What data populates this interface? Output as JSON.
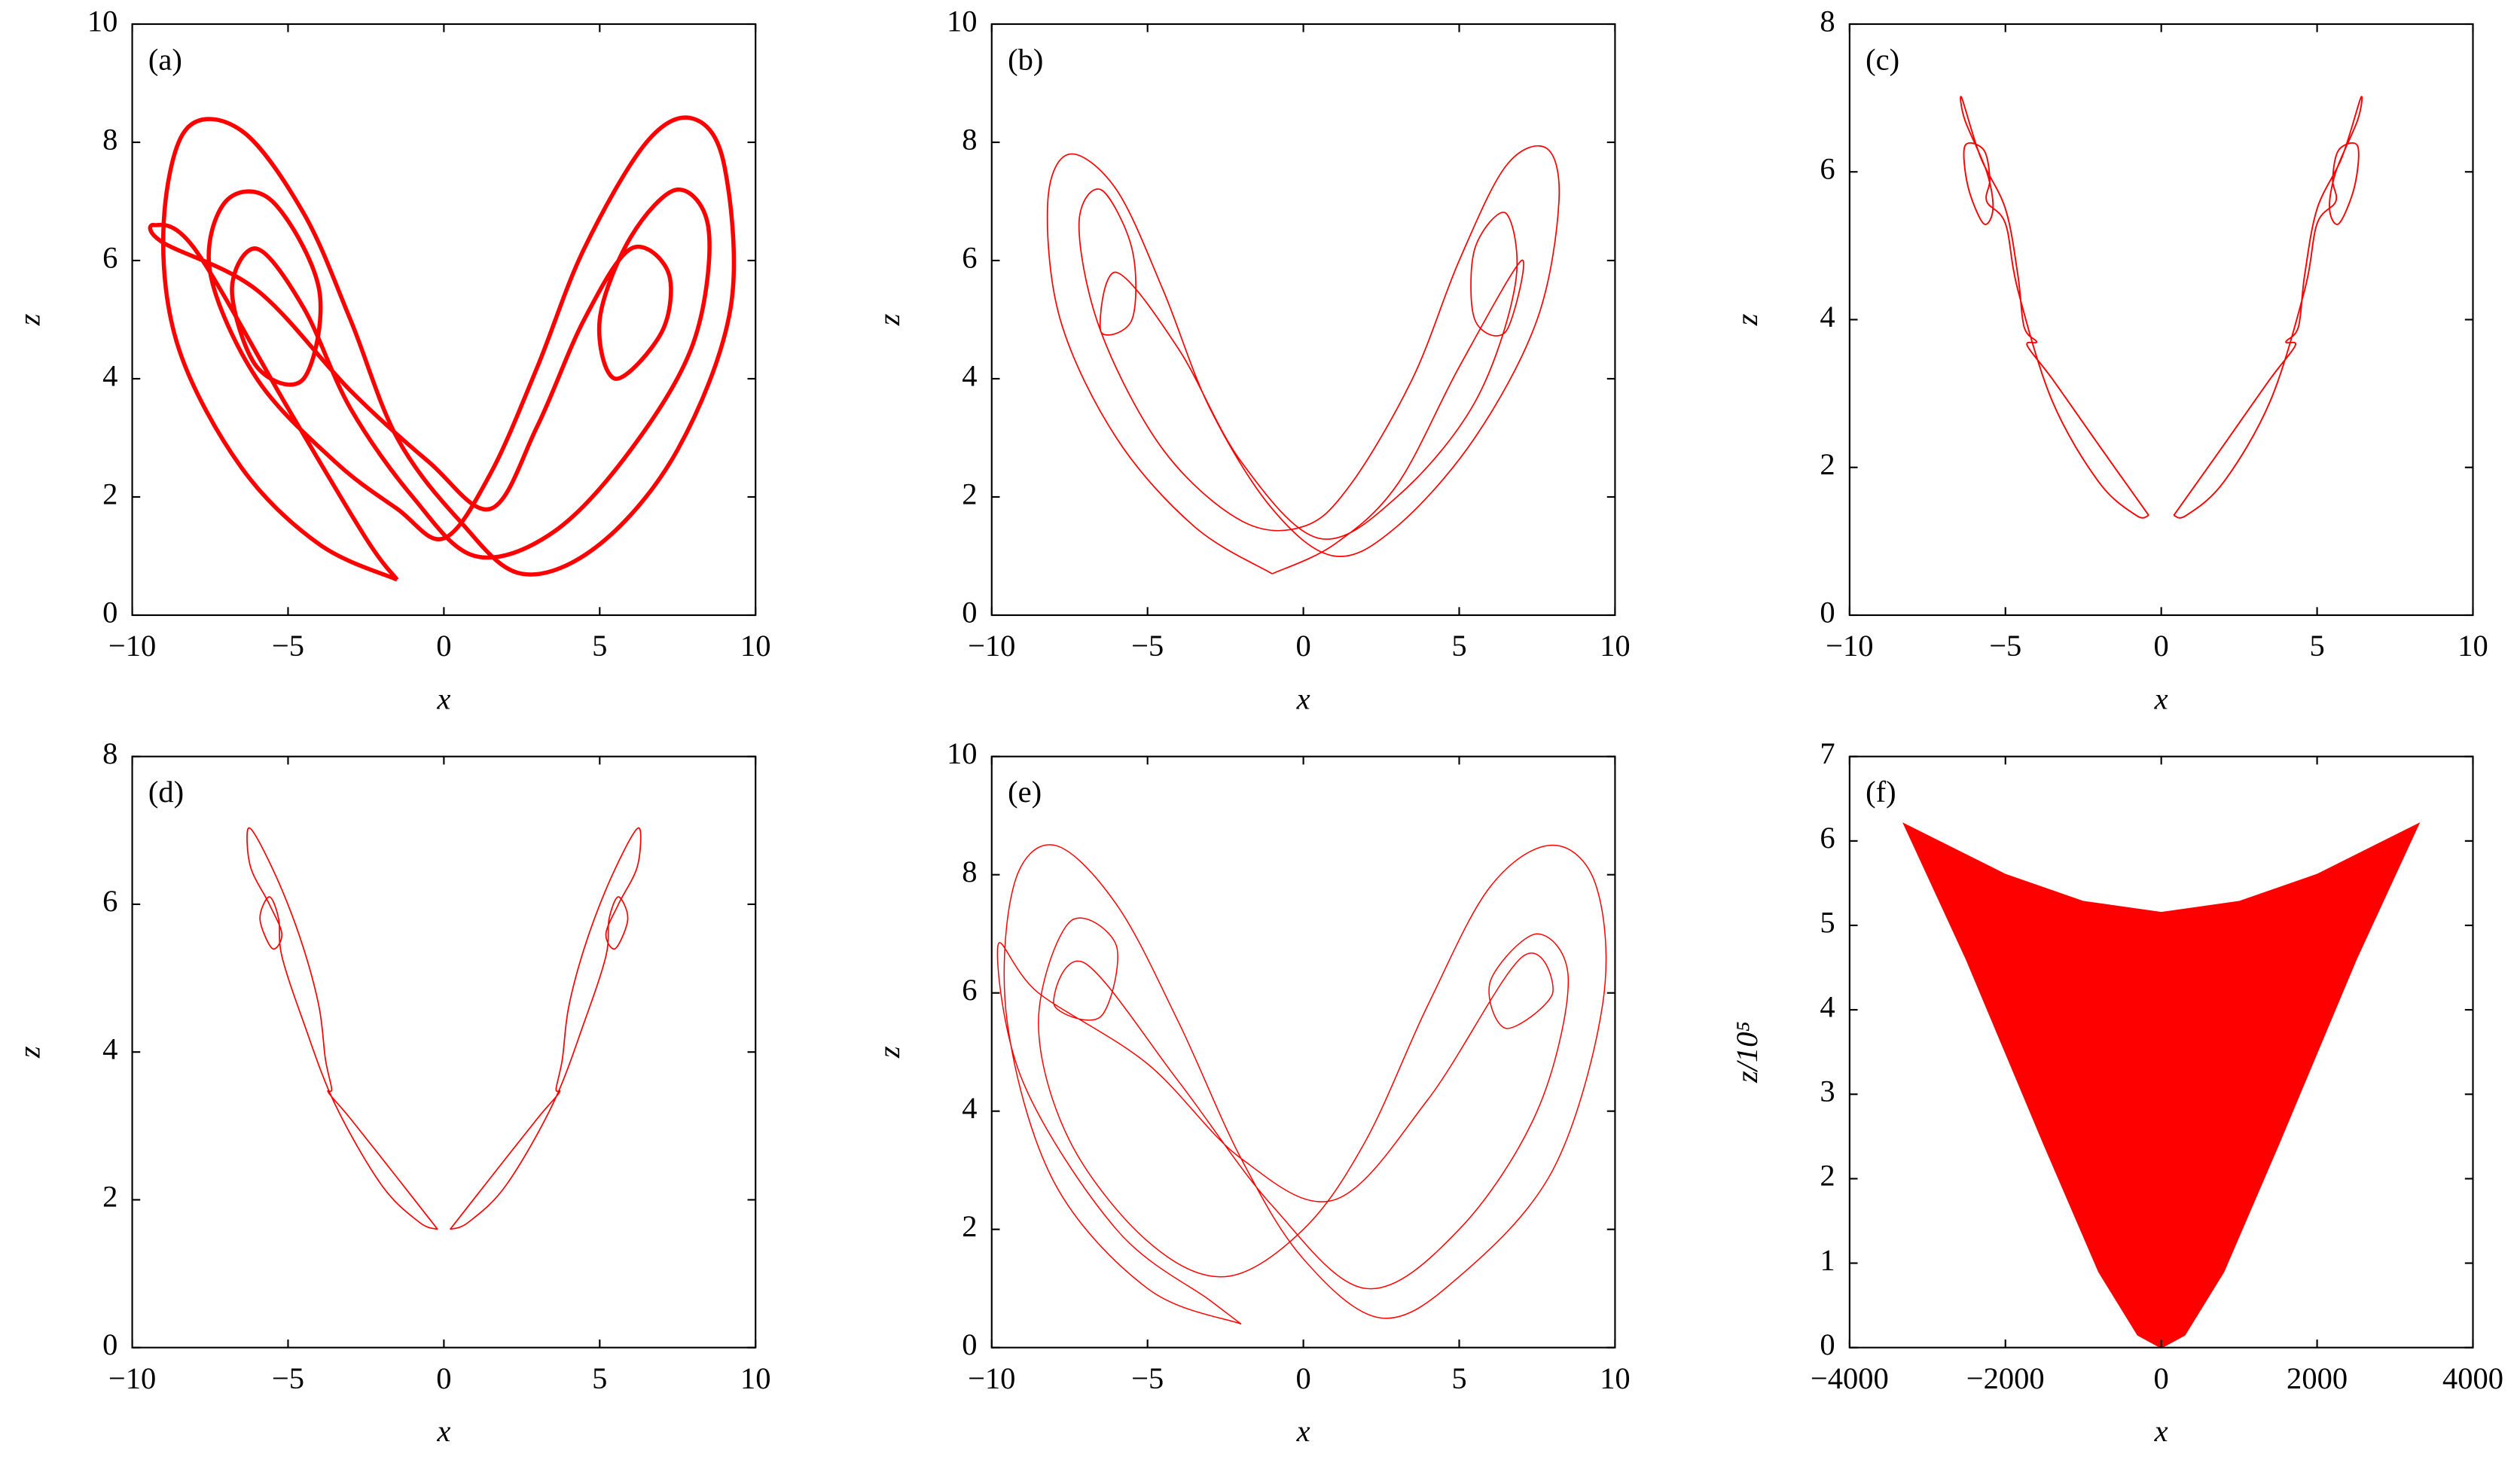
{
  "chart_data": [
    {
      "type": "line",
      "label": "(a)",
      "xlabel": "x",
      "ylabel": "z",
      "xlim": [
        -10,
        10
      ],
      "ylim": [
        0,
        10
      ],
      "xticks": [
        {
          "value": -10,
          "label": "−10"
        },
        {
          "value": -5,
          "label": "−5"
        },
        0,
        5,
        10
      ],
      "yticks": [
        0,
        2,
        4,
        6,
        8,
        10
      ],
      "series": [
        {
          "color": "#ff0000",
          "x": [
            -1.5,
            -4,
            -6.5,
            -8.5,
            -9,
            -8.3,
            -6.5,
            -4.5,
            -3,
            -1.5,
            0.5,
            2.5,
            5,
            7.5,
            9.2,
            9,
            8,
            6.5,
            4.5,
            3,
            1.5,
            0,
            -1.5,
            -3.5,
            -6,
            -7.5,
            -7,
            -5.5,
            -4,
            -4.5,
            -6,
            -6.8,
            -6,
            -4.5,
            -3,
            -1,
            1,
            3.5,
            6,
            8,
            8.5,
            7.5,
            6,
            5,
            5.5,
            7,
            7.2,
            6,
            4.5,
            3,
            1.5,
            -0.5,
            -3,
            -6,
            -9,
            -9.3,
            -8,
            -5,
            -2.5,
            -1.5
          ],
          "values": [
            0.6,
            1.2,
            2.5,
            4.5,
            6.5,
            8.2,
            8.2,
            6.8,
            5,
            3,
            1.6,
            0.7,
            1.2,
            2.8,
            5.2,
            7.6,
            8.4,
            8,
            6.2,
            4.2,
            2.4,
            1.3,
            1.8,
            2.6,
            4,
            5.8,
            7,
            7,
            5.5,
            4,
            4.2,
            5.5,
            6.2,
            5.2,
            3.5,
            2,
            1,
            1.4,
            2.8,
            4.6,
            6.5,
            7.2,
            6.4,
            5,
            4,
            4.8,
            5.8,
            6.2,
            5,
            3.2,
            1.8,
            2.6,
            3.8,
            5.5,
            6.3,
            6.6,
            6.2,
            3.5,
            1.3,
            0.6
          ]
        }
      ]
    },
    {
      "type": "line",
      "label": "(b)",
      "xlabel": "x",
      "ylabel": "z",
      "xlim": [
        -10,
        10
      ],
      "ylim": [
        0,
        10
      ],
      "xticks": [
        {
          "value": -10,
          "label": "−10"
        },
        {
          "value": -5,
          "label": "−5"
        },
        0,
        5,
        10
      ],
      "yticks": [
        0,
        2,
        4,
        6,
        8,
        10
      ],
      "series": [
        {
          "color": "#ff0000",
          "x": [
            -1,
            -3.5,
            -6,
            -7.8,
            -8.2,
            -7.5,
            -6,
            -4.5,
            -3,
            -1,
            1,
            3,
            5.5,
            7.5,
            8.2,
            7.8,
            6.5,
            5,
            3.5,
            1.5,
            0,
            -2,
            -4.5,
            -6.5,
            -7.2,
            -6.5,
            -5.5,
            -5.5,
            -6.5,
            -6,
            -4,
            -2,
            0.5,
            3,
            5.5,
            6.8,
            6.5,
            5.5,
            5.5,
            6.5,
            7,
            5,
            3,
            1,
            -1
          ],
          "values": [
            0.7,
            1.5,
            3,
            5,
            7,
            7.8,
            7.2,
            5.5,
            3.5,
            1.8,
            1,
            1.5,
            3,
            5,
            7,
            7.9,
            7.6,
            6,
            4,
            2.2,
            1.5,
            1.6,
            2.8,
            4.8,
            6.6,
            7.2,
            6.2,
            5,
            4.8,
            5.8,
            4.5,
            2.6,
            1.3,
            2,
            3.6,
            5.6,
            6.8,
            6.2,
            5,
            4.8,
            6,
            4.2,
            2.2,
            1.2,
            0.7
          ]
        }
      ]
    },
    {
      "type": "line",
      "label": "(c)",
      "xlabel": "x",
      "ylabel": "z",
      "xlim": [
        -10,
        10
      ],
      "ylim": [
        0,
        8
      ],
      "xticks": [
        {
          "value": -10,
          "label": "−10"
        },
        {
          "value": -5,
          "label": "−5"
        },
        0,
        5,
        10
      ],
      "yticks": [
        0,
        2,
        4,
        6,
        8
      ],
      "series": [
        {
          "color": "#ff0000",
          "x": [
            0.4,
            2,
            3.5,
            4.3,
            4.0,
            4.4,
            4.6,
            5.0,
            5.8,
            6.4,
            6.3,
            5.6,
            5.4,
            5.7,
            6.2,
            6.3,
            5.7,
            5.5,
            5.6,
            5.0,
            4.6,
            3.5,
            2.0,
            0.8,
            0.4,
            null,
            -0.4,
            -2,
            -3.5,
            -4.3,
            -4.0,
            -4.4,
            -4.6,
            -5.0,
            -5.8,
            -6.4,
            -6.3,
            -5.6,
            -5.4,
            -5.7,
            -6.2,
            -6.3,
            -5.7,
            -5.5,
            -5.6,
            -5.0,
            -4.6,
            -3.5,
            -2.0,
            -0.8,
            -0.4
          ],
          "values": [
            1.35,
            2.3,
            3.2,
            3.65,
            3.7,
            3.9,
            4.6,
            5.5,
            6.2,
            7.0,
            6.7,
            6.0,
            5.5,
            5.3,
            5.8,
            6.35,
            6.3,
            5.9,
            5.6,
            5.3,
            4.4,
            2.9,
            1.8,
            1.35,
            1.35,
            null,
            1.35,
            2.3,
            3.2,
            3.65,
            3.7,
            3.9,
            4.6,
            5.5,
            6.2,
            7.0,
            6.7,
            6.0,
            5.5,
            5.3,
            5.8,
            6.35,
            6.3,
            5.9,
            5.6,
            5.3,
            4.4,
            2.9,
            1.8,
            1.35,
            1.35
          ]
        }
      ]
    },
    {
      "type": "line",
      "label": "(d)",
      "xlabel": "x",
      "ylabel": "z",
      "xlim": [
        -10,
        10
      ],
      "ylim": [
        0,
        8
      ],
      "xticks": [
        {
          "value": -10,
          "label": "−10"
        },
        {
          "value": -5,
          "label": "−5"
        },
        0,
        5,
        10
      ],
      "yticks": [
        0,
        2,
        4,
        6,
        8
      ],
      "series": [
        {
          "color": "#ff0000",
          "x": [
            0.2,
            1.5,
            3.0,
            3.7,
            3.6,
            3.8,
            4.0,
            4.5,
            5.2,
            6.0,
            6.3,
            6.2,
            5.6,
            5.2,
            5.5,
            5.9,
            5.6,
            5.3,
            5.2,
            4.5,
            3.5,
            2.0,
            0.8,
            0.2,
            null,
            -0.2,
            -1.5,
            -3.0,
            -3.7,
            -3.6,
            -3.8,
            -4.0,
            -4.5,
            -5.2,
            -6.0,
            -6.3,
            -6.2,
            -5.6,
            -5.2,
            -5.5,
            -5.9,
            -5.6,
            -5.3,
            -5.2,
            -4.5,
            -3.5,
            -2.0,
            -0.8,
            -0.2
          ],
          "values": [
            1.6,
            2.3,
            3.1,
            3.45,
            3.5,
            3.9,
            4.6,
            5.4,
            6.2,
            6.9,
            7.0,
            6.5,
            6.0,
            5.6,
            5.4,
            5.8,
            6.1,
            5.8,
            5.3,
            4.4,
            3.3,
            2.2,
            1.7,
            1.6,
            null,
            1.6,
            2.3,
            3.1,
            3.45,
            3.5,
            3.9,
            4.6,
            5.4,
            6.2,
            6.9,
            7.0,
            6.5,
            6.0,
            5.6,
            5.4,
            5.8,
            6.1,
            5.8,
            5.3,
            4.4,
            3.3,
            2.2,
            1.7,
            1.6
          ]
        }
      ]
    },
    {
      "type": "line",
      "label": "(e)",
      "xlabel": "x",
      "ylabel": "z",
      "xlim": [
        -10,
        10
      ],
      "ylim": [
        0,
        10
      ],
      "xticks": [
        {
          "value": -10,
          "label": "−10"
        },
        {
          "value": -5,
          "label": "−5"
        },
        0,
        5,
        10
      ],
      "yticks": [
        0,
        2,
        4,
        6,
        8,
        10
      ],
      "series": [
        {
          "color": "#ff0000",
          "x": [
            -2,
            -5,
            -8,
            -9.5,
            -9.3,
            -8,
            -6,
            -4,
            -2,
            0,
            2.5,
            5,
            8,
            9.6,
            9.4,
            8,
            6,
            4,
            2,
            0,
            -2.5,
            -5,
            -7.5,
            -8.5,
            -7.5,
            -6,
            -6.5,
            -8,
            -7,
            -4,
            -1,
            2,
            5,
            7.5,
            8.5,
            7.5,
            6,
            6.5,
            8,
            7,
            4,
            1,
            -2,
            -5,
            -8.5,
            -9.8,
            -9,
            -6,
            -3,
            -2
          ],
          "values": [
            0.4,
            1,
            2.8,
            5.5,
            7.8,
            8.5,
            7.5,
            5.5,
            3.2,
            1.5,
            0.5,
            1.2,
            3,
            5.8,
            7.8,
            8.5,
            7.8,
            5.8,
            3.5,
            2,
            1.2,
            1.8,
            3.5,
            5.5,
            7.2,
            6.8,
            5.6,
            5.8,
            6.5,
            4.5,
            2.4,
            1,
            2,
            4,
            6.2,
            7,
            6.2,
            5.4,
            6,
            6.6,
            4.2,
            2.5,
            3.2,
            4.8,
            6,
            6.8,
            4.5,
            2,
            0.8,
            0.4
          ]
        }
      ]
    },
    {
      "type": "area",
      "label": "(f)",
      "xlabel": "x",
      "ylabel": "z/10⁵",
      "xlim": [
        -4000,
        4000
      ],
      "ylim": [
        0,
        7
      ],
      "xticks": [
        {
          "value": -4000,
          "label": "−4000"
        },
        {
          "value": -2000,
          "label": "−2000"
        },
        0,
        2000,
        4000
      ],
      "yticks": [
        0,
        1,
        2,
        3,
        4,
        5,
        6,
        7
      ],
      "series": [
        {
          "color": "#ff0000",
          "x": [
            -3300,
            -2000,
            -1000,
            0,
            1000,
            2000,
            3300,
            2500,
            1500,
            800,
            300,
            0,
            -300,
            -800,
            -1500,
            -2500
          ],
          "values": [
            6.2,
            5.6,
            5.28,
            5.15,
            5.28,
            5.6,
            6.2,
            4.6,
            2.4,
            0.9,
            0.15,
            0,
            0.15,
            0.9,
            2.4,
            4.6
          ]
        }
      ]
    }
  ]
}
